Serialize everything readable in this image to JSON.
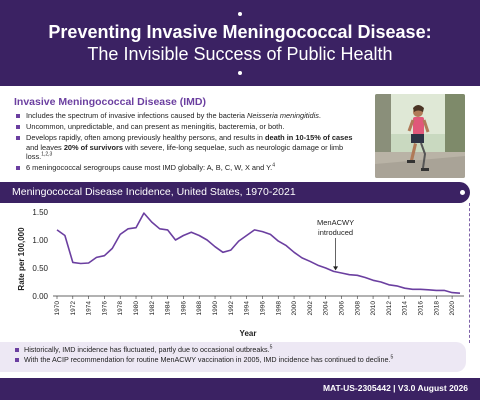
{
  "header": {
    "title": "Preventing Invasive Meningococcal Disease:",
    "subtitle": "The Invisible Success of Public Health"
  },
  "imd": {
    "title": "Invasive Meningococcal Disease (IMD)",
    "bullet1_pre": "Includes the spectrum of invasive infections caused by the bacteria ",
    "bullet1_italic": "Neisseria meningitidis",
    "bullet1_post": ".",
    "bullet2": "Uncommon, unpredictable, and can present as meningitis, bacteremia, or both.",
    "bullet3_a": "Develops rapidly, often among previously healthy persons, and results in ",
    "bullet3_b": "death in 10-15% of cases",
    "bullet3_c": " and leaves ",
    "bullet3_d": "20% of survivors",
    "bullet3_e": " with severe, life-long sequelae, such as neurologic damage or limb loss.",
    "bullet3_sup": "1,2,3",
    "bullet4": "6 meningococcal serogroups cause most IMD globally: A, B, C, W, X and Y.",
    "bullet4_sup": "4"
  },
  "photo": {
    "alt": "Person with prosthetic leg walking outdoors"
  },
  "chart_banner": {
    "title": "Meningococcal Disease Incidence, United States, 1970-2021"
  },
  "chart_data": {
    "type": "line",
    "title": "Meningococcal Disease Incidence, United States, 1970-2021",
    "xlabel": "Year",
    "ylabel": "Rate per 100,000",
    "xlim": [
      1970,
      2021
    ],
    "ylim": [
      0,
      1.5
    ],
    "yticks": [
      "0.00",
      "0.50",
      "1.00",
      "1.50"
    ],
    "xticks": [
      1970,
      1972,
      1974,
      1976,
      1978,
      1980,
      1982,
      1984,
      1986,
      1988,
      1990,
      1992,
      1994,
      1996,
      1998,
      2000,
      2002,
      2004,
      2006,
      2008,
      2010,
      2012,
      2014,
      2016,
      2018,
      2020
    ],
    "grid": false,
    "color": "#6b3fa0",
    "x": [
      1970,
      1971,
      1972,
      1973,
      1974,
      1975,
      1976,
      1977,
      1978,
      1979,
      1980,
      1981,
      1982,
      1983,
      1984,
      1985,
      1986,
      1987,
      1988,
      1989,
      1990,
      1991,
      1992,
      1993,
      1994,
      1995,
      1996,
      1997,
      1998,
      1999,
      2000,
      2001,
      2002,
      2003,
      2004,
      2005,
      2006,
      2007,
      2008,
      2009,
      2010,
      2011,
      2012,
      2013,
      2014,
      2015,
      2016,
      2017,
      2018,
      2019,
      2020,
      2021
    ],
    "y": [
      1.18,
      1.08,
      0.6,
      0.58,
      0.59,
      0.69,
      0.72,
      0.85,
      1.1,
      1.2,
      1.22,
      1.48,
      1.32,
      1.2,
      1.18,
      1.0,
      1.08,
      1.14,
      1.08,
      1.0,
      0.88,
      0.78,
      0.82,
      0.98,
      1.08,
      1.18,
      1.15,
      1.1,
      0.98,
      0.9,
      0.78,
      0.68,
      0.62,
      0.55,
      0.5,
      0.44,
      0.41,
      0.38,
      0.37,
      0.33,
      0.28,
      0.25,
      0.2,
      0.18,
      0.14,
      0.12,
      0.12,
      0.11,
      0.1,
      0.1,
      0.06,
      0.05
    ],
    "annotation": {
      "label_line1": "MenACWY",
      "label_line2": "introduced",
      "year": 2005
    }
  },
  "notes": {
    "note1": "Historically, IMD incidence has fluctuated, partly due to occasional outbreaks.",
    "note1_sup": "5",
    "note2": "With the ACIP recommendation for routine MenACWY vaccination in 2005, IMD incidence has continued to decline.",
    "note2_sup": "5"
  },
  "footer": {
    "text": "MAT-US-2305442 | V3.0 August 2026"
  }
}
